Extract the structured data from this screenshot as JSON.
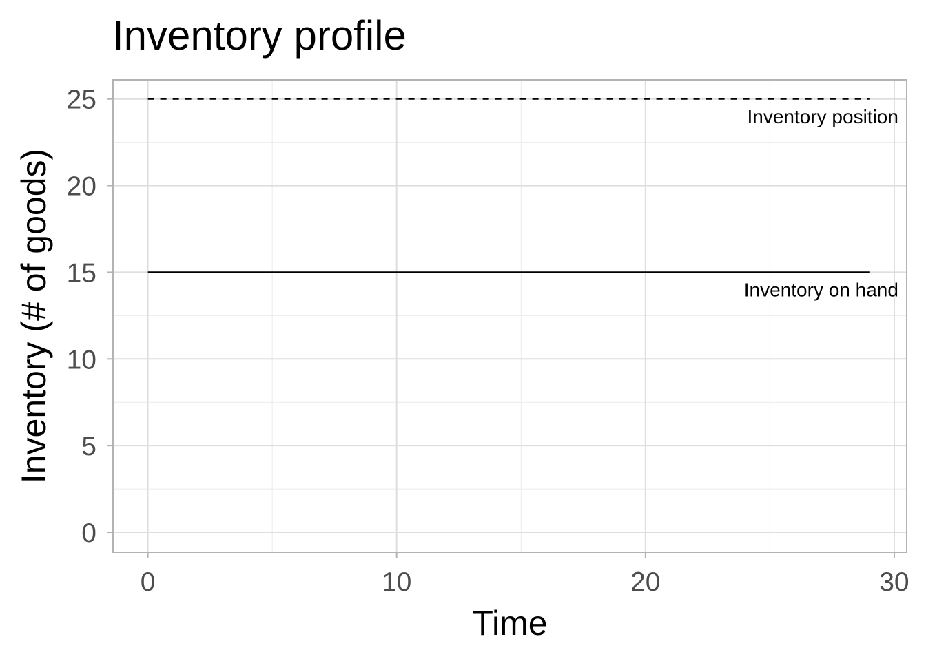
{
  "chart_data": {
    "type": "line",
    "title": "Inventory profile",
    "xlabel": "Time",
    "ylabel": "Inventory (# of goods)",
    "xlim": [
      -1.4,
      30.5
    ],
    "ylim": [
      -1.15,
      26.1
    ],
    "x_ticks": [
      0,
      10,
      20,
      30
    ],
    "y_ticks": [
      0,
      5,
      10,
      15,
      20,
      25
    ],
    "grid": true,
    "legend": "none",
    "series": [
      {
        "line_style": "dashed",
        "color": "#000000",
        "x": [
          0,
          29
        ],
        "values": [
          25,
          25
        ]
      },
      {
        "line_style": "solid",
        "color": "#000000",
        "x": [
          0,
          29
        ],
        "values": [
          15,
          15
        ]
      }
    ],
    "annotations": [
      {
        "text": "Inventory position",
        "x": 30,
        "y": 24
      },
      {
        "text": "Inventory on hand",
        "x": 30,
        "y": 14
      }
    ]
  }
}
